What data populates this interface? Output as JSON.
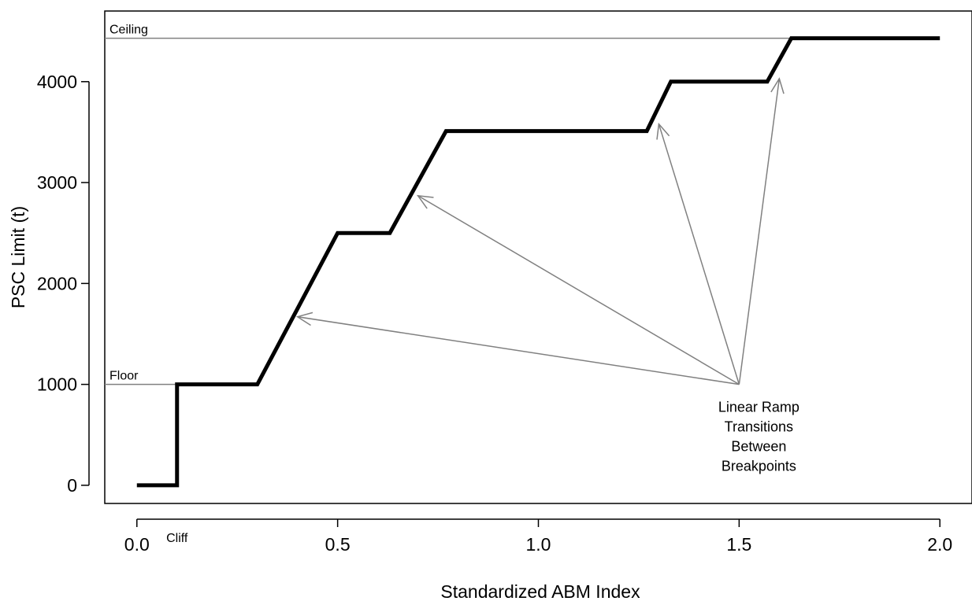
{
  "chart_data": {
    "type": "line",
    "xlabel": "Standardized ABM Index",
    "ylabel": "PSC Limit (t)",
    "xlim": [
      -0.08,
      2.08
    ],
    "ylim": [
      -180,
      4700
    ],
    "x_ticks": [
      0.0,
      0.5,
      1.0,
      1.5,
      2.0
    ],
    "x_tick_labels": [
      "0.0",
      "0.5",
      "1.0",
      "1.5",
      "2.0"
    ],
    "y_ticks": [
      0,
      1000,
      2000,
      3000,
      4000
    ],
    "y_tick_labels": [
      "0",
      "1000",
      "2000",
      "3000",
      "4000"
    ],
    "grid": false,
    "series": [
      {
        "x": [
          0.0,
          0.1,
          0.1,
          0.3,
          0.5,
          0.63,
          0.77,
          1.27,
          1.33,
          1.57,
          1.63,
          2.0
        ],
        "y": [
          0,
          0,
          1000,
          1000,
          2500,
          2500,
          3510,
          3510,
          4000,
          4000,
          4430,
          4430
        ]
      }
    ],
    "reference_lines": [
      {
        "label": "Ceiling",
        "y": 4430,
        "x_range": [
          -0.08,
          1.63
        ]
      },
      {
        "label": "Floor",
        "y": 1000,
        "x_range": [
          -0.08,
          0.1
        ]
      }
    ],
    "annotations": {
      "cliff_label": "Cliff",
      "cliff_x": 0.1,
      "ramp_text": [
        "Linear Ramp",
        "Transitions",
        "Between",
        "Breakpoints"
      ],
      "arrow_origin": {
        "x": 1.5,
        "y": 1000
      },
      "arrow_targets": [
        {
          "x": 0.4,
          "y": 1670
        },
        {
          "x": 0.7,
          "y": 2870
        },
        {
          "x": 1.3,
          "y": 3580
        },
        {
          "x": 1.6,
          "y": 4030
        }
      ]
    },
    "colors": {
      "line": "#000000",
      "reference": "#808080",
      "arrow": "#808080"
    }
  }
}
